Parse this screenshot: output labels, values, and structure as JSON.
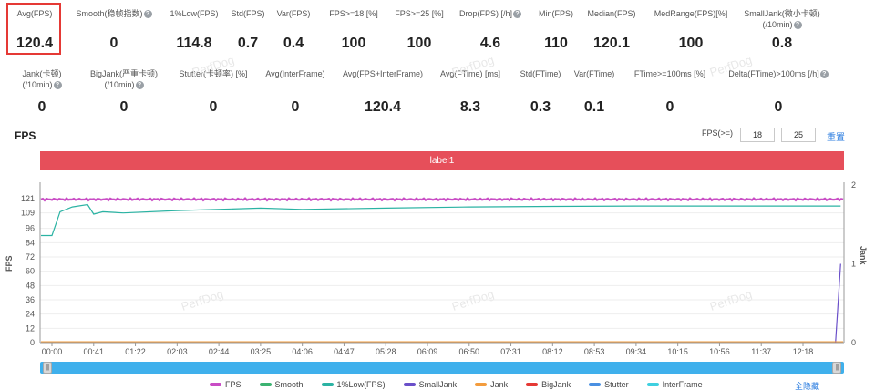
{
  "metrics_row1": [
    {
      "label": "Avg(FPS)",
      "value": "120.4",
      "help": false
    },
    {
      "label": "Smooth(稳帧指数)",
      "value": "0",
      "help": true
    },
    {
      "label": "1%Low(FPS)",
      "value": "114.8",
      "help": false
    },
    {
      "label": "Std(FPS)",
      "value": "0.7",
      "help": false
    },
    {
      "label": "Var(FPS)",
      "value": "0.4",
      "help": false
    },
    {
      "label": "FPS>=18 [%]",
      "value": "100",
      "help": false
    },
    {
      "label": "FPS>=25 [%]",
      "value": "100",
      "help": false
    },
    {
      "label": "Drop(FPS) [/h]",
      "value": "4.6",
      "help": true
    },
    {
      "label": "Min(FPS)",
      "value": "110",
      "help": false
    },
    {
      "label": "Median(FPS)",
      "value": "120.1",
      "help": false
    },
    {
      "label": "MedRange(FPS)[%]",
      "value": "100",
      "help": false
    },
    {
      "label": "SmallJank(微小卡顿)",
      "label2": "(/10min)",
      "value": "0.8",
      "help": true
    }
  ],
  "metrics_row2": [
    {
      "label": "Jank(卡顿)",
      "label2": "(/10min)",
      "value": "0",
      "help": true
    },
    {
      "label": "BigJank(严重卡顿)",
      "label2": "(/10min)",
      "value": "0",
      "help": true
    },
    {
      "label": "Stutter(卡顿率) [%]",
      "value": "0",
      "help": false
    },
    {
      "label": "Avg(InterFrame)",
      "value": "0",
      "help": false
    },
    {
      "label": "Avg(FPS+InterFrame)",
      "value": "120.4",
      "help": false
    },
    {
      "label": "Avg(FTime) [ms]",
      "value": "8.3",
      "help": false
    },
    {
      "label": "Std(FTime)",
      "value": "0.3",
      "help": false
    },
    {
      "label": "Var(FTime)",
      "value": "0.1",
      "help": false
    },
    {
      "label": "FTime>=100ms [%]",
      "value": "0",
      "help": false
    },
    {
      "label": "Delta(FTime)>100ms [/h]",
      "value": "0",
      "help": true
    }
  ],
  "section_title": "FPS",
  "threshold": {
    "label": "FPS(>=)",
    "value1": "18",
    "value2": "25",
    "reset_label": "重置"
  },
  "label_bar": "label1",
  "watermark": "PerfDog",
  "chart_data": {
    "type": "line",
    "ylabel": "FPS",
    "y2label": "Jank",
    "y_ticks": [
      "121",
      "109",
      "96",
      "84",
      "72",
      "60",
      "48",
      "36",
      "24",
      "12",
      "0"
    ],
    "y2_ticks": [
      "2",
      "1",
      "0"
    ],
    "x_ticks": [
      "00:00",
      "00:41",
      "01:22",
      "02:03",
      "02:44",
      "03:25",
      "04:06",
      "04:47",
      "05:28",
      "06:09",
      "06:50",
      "07:31",
      "08:12",
      "08:53",
      "09:34",
      "10:15",
      "10:56",
      "11:37",
      "12:18"
    ],
    "ylim": [
      0,
      121
    ],
    "y2lim": [
      0,
      2
    ],
    "series": [
      {
        "name": "FPS",
        "color": "#c94cc5",
        "x": [
          "00:00",
          "00:41",
          "06:09",
          "12:18",
          "12:55"
        ],
        "y": [
          120.4,
          120.4,
          120.4,
          120.4,
          120.4
        ]
      },
      {
        "name": "1%Low(FPS)",
        "color": "#2bb3a3",
        "x": [
          "00:00",
          "00:08",
          "00:20",
          "00:35",
          "00:41",
          "00:50",
          "01:10",
          "02:03",
          "03:25",
          "04:06",
          "05:28",
          "06:50",
          "08:12",
          "09:34",
          "10:56",
          "12:18",
          "12:55"
        ],
        "y": [
          90,
          110,
          114,
          116,
          108,
          110,
          109,
          111,
          113,
          112,
          113,
          114,
          114.5,
          114.8,
          114.8,
          114.8,
          114.8
        ]
      },
      {
        "name": "SmallJank",
        "color": "#6a4fc9",
        "x": [
          "12:50",
          "12:55"
        ],
        "y": [
          0,
          1.0
        ],
        "axis": "right"
      }
    ]
  },
  "legend": [
    {
      "name": "FPS",
      "color": "#c94cc5"
    },
    {
      "name": "Smooth",
      "color": "#3cb371"
    },
    {
      "name": "1%Low(FPS)",
      "color": "#2bb3a3"
    },
    {
      "name": "SmallJank",
      "color": "#6a4fc9"
    },
    {
      "name": "Jank",
      "color": "#f39c3d"
    },
    {
      "name": "BigJank",
      "color": "#e53935"
    },
    {
      "name": "Stutter",
      "color": "#4a90e2"
    },
    {
      "name": "InterFrame",
      "color": "#3fd0e0"
    }
  ],
  "hide_all_label": "全隐藏"
}
